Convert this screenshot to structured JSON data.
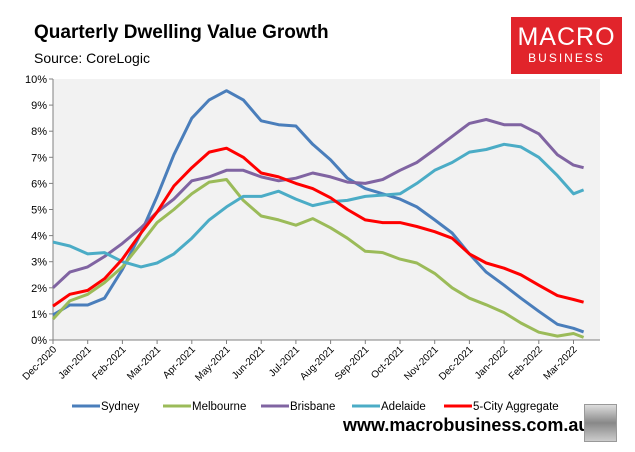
{
  "title": "Quarterly Dwelling Value Growth",
  "subtitle": "Source: CoreLogic",
  "logo": {
    "line1": "MACRO",
    "line2": "BUSINESS",
    "color": "#e1242b"
  },
  "website": "www.macrobusiness.com.au",
  "chart_data": {
    "type": "line",
    "title": "Quarterly Dwelling Value Growth",
    "xlabel": "",
    "ylabel": "",
    "ylim": [
      0,
      10
    ],
    "y_ticks": [
      "0%",
      "1%",
      "2%",
      "3%",
      "4%",
      "5%",
      "6%",
      "7%",
      "8%",
      "9%",
      "10%"
    ],
    "x_ticks": [
      "Dec-2020",
      "Jan-2021",
      "Feb-2021",
      "Mar-2021",
      "Apr-2021",
      "May-2021",
      "Jun-2021",
      "Jul-2021",
      "Aug-2021",
      "Sep-2021",
      "Oct-2021",
      "Nov-2021",
      "Dec-2021",
      "Jan-2022",
      "Feb-2022",
      "Mar-2022"
    ],
    "grid": false,
    "legend": "bottom",
    "x": [
      "2020-12-01",
      "2020-12-16",
      "2021-01-01",
      "2021-01-16",
      "2021-02-01",
      "2021-02-16",
      "2021-03-01",
      "2021-03-16",
      "2021-04-01",
      "2021-04-16",
      "2021-05-01",
      "2021-05-16",
      "2021-06-01",
      "2021-06-16",
      "2021-07-01",
      "2021-07-16",
      "2021-08-01",
      "2021-08-16",
      "2021-09-01",
      "2021-09-16",
      "2021-10-01",
      "2021-10-16",
      "2021-11-01",
      "2021-11-16",
      "2021-12-01",
      "2021-12-16",
      "2022-01-01",
      "2022-01-16",
      "2022-02-01",
      "2022-02-16",
      "2022-03-01",
      "2022-03-10"
    ],
    "series": [
      {
        "name": "Sydney",
        "color": "#4a7ebb",
        "values": [
          0.96,
          1.34,
          1.34,
          1.6,
          2.7,
          4.1,
          5.5,
          7.1,
          8.5,
          9.2,
          9.55,
          9.2,
          8.4,
          8.25,
          8.2,
          7.5,
          6.9,
          6.2,
          5.8,
          5.6,
          5.4,
          5.1,
          4.6,
          4.1,
          3.3,
          2.6,
          2.1,
          1.6,
          1.1,
          0.6,
          0.45,
          0.31
        ]
      },
      {
        "name": "Melbourne",
        "color": "#9bbb59",
        "values": [
          0.8,
          1.5,
          1.75,
          2.2,
          2.8,
          3.7,
          4.5,
          5.0,
          5.6,
          6.05,
          6.15,
          5.35,
          4.75,
          4.6,
          4.4,
          4.65,
          4.3,
          3.9,
          3.4,
          3.35,
          3.1,
          2.95,
          2.55,
          2.0,
          1.6,
          1.35,
          1.05,
          0.65,
          0.3,
          0.15,
          0.25,
          0.1
        ]
      },
      {
        "name": "Brisbane",
        "color": "#8064a2",
        "values": [
          2.0,
          2.6,
          2.8,
          3.2,
          3.7,
          4.3,
          4.9,
          5.4,
          6.1,
          6.25,
          6.5,
          6.5,
          6.25,
          6.1,
          6.2,
          6.4,
          6.25,
          6.05,
          6.0,
          6.15,
          6.5,
          6.8,
          7.3,
          7.8,
          8.3,
          8.45,
          8.25,
          8.25,
          7.9,
          7.1,
          6.7,
          6.6
        ]
      },
      {
        "name": "Adelaide",
        "color": "#4bacc6",
        "values": [
          3.75,
          3.6,
          3.3,
          3.35,
          3.0,
          2.8,
          2.95,
          3.3,
          3.9,
          4.6,
          5.1,
          5.5,
          5.5,
          5.7,
          5.4,
          5.15,
          5.3,
          5.35,
          5.5,
          5.55,
          5.6,
          6.0,
          6.5,
          6.8,
          7.2,
          7.3,
          7.5,
          7.4,
          7.0,
          6.3,
          5.6,
          5.75
        ]
      },
      {
        "name": "5-City Aggregate",
        "color": "#ff0000",
        "values": [
          1.3,
          1.75,
          1.9,
          2.35,
          3.1,
          4.1,
          4.9,
          5.9,
          6.6,
          7.2,
          7.35,
          7.0,
          6.4,
          6.25,
          6.0,
          5.8,
          5.45,
          5.0,
          4.6,
          4.5,
          4.5,
          4.35,
          4.15,
          3.9,
          3.3,
          2.95,
          2.75,
          2.5,
          2.1,
          1.7,
          1.55,
          1.45
        ]
      }
    ]
  }
}
